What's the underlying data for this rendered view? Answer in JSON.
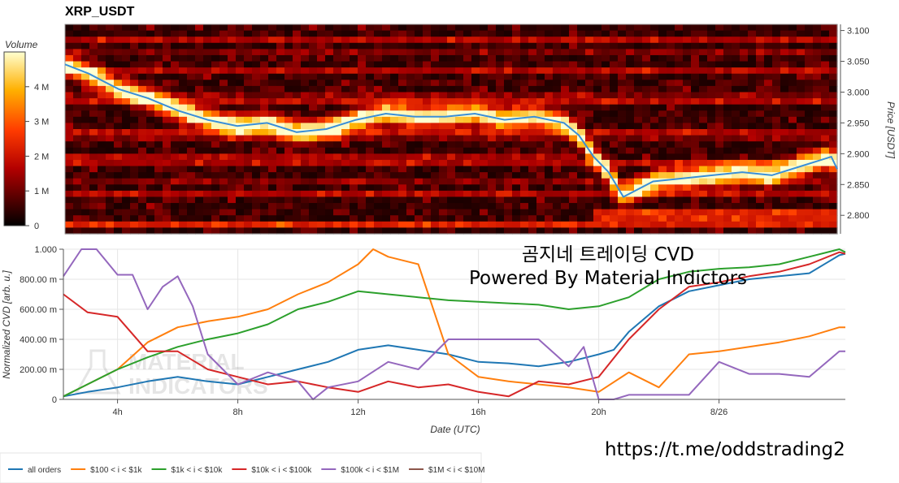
{
  "header": {
    "title": "XRP_USDT"
  },
  "watermark": {
    "text": "MATERIAL INDICATORS"
  },
  "overlay": {
    "line1": "곰지네 트레이딩 CVD",
    "line2": "Powered By Material Indictors",
    "link": "https://t.me/oddstrading2"
  },
  "colors": {
    "all_orders": "#1f77b4",
    "r100_1k": "#ff7f0e",
    "r1k_10k": "#2ca02c",
    "r10k_100k": "#d62728",
    "r100k_1m": "#9467bd",
    "r1m_10m": "#8c564b",
    "price_line": "#3a8fd8"
  },
  "chart_data": [
    {
      "type": "heatmap",
      "title": "XRP_USDT",
      "colorbar_label": "Volume",
      "colorbar_ticks": [
        "0",
        "1 M",
        "2 M",
        "3 M",
        "4 M"
      ],
      "colorbar_range": [
        0,
        5000000
      ],
      "ylabel": "Price [USDT]",
      "y_ticks": [
        "2.800",
        "2.850",
        "2.900",
        "2.950",
        "3.000",
        "3.050",
        "3.100"
      ],
      "ylim": [
        2.77,
        3.11
      ],
      "price_series": {
        "x_hours": [
          2.2,
          3,
          4,
          5,
          6,
          7,
          8,
          9,
          10,
          11,
          12,
          13,
          14,
          15,
          16,
          17,
          18,
          19,
          19.5,
          20,
          20.5,
          21,
          22,
          23,
          24,
          25,
          26,
          27,
          28,
          28.2
        ],
        "price": [
          3.045,
          3.03,
          3.005,
          2.99,
          2.97,
          2.955,
          2.945,
          2.95,
          2.935,
          2.94,
          2.955,
          2.965,
          2.96,
          2.96,
          2.965,
          2.955,
          2.96,
          2.95,
          2.93,
          2.895,
          2.87,
          2.83,
          2.855,
          2.86,
          2.865,
          2.87,
          2.865,
          2.88,
          2.895,
          2.875
        ]
      }
    },
    {
      "type": "line",
      "xlabel": "Date (UTC)",
      "ylabel": "Normalized CVD [arb. u.]",
      "x_ticks": [
        "4h",
        "8h",
        "12h",
        "16h",
        "20h",
        "8/26"
      ],
      "x_tick_hours": [
        4,
        8,
        12,
        16,
        20,
        24
      ],
      "xlim_hours": [
        2.2,
        28.2
      ],
      "y_ticks": [
        "0",
        "200.00 m",
        "400.00 m",
        "600.00 m",
        "800.00 m",
        "1.000"
      ],
      "ylim": [
        0,
        1
      ],
      "legend_position": "bottom-left",
      "series": [
        {
          "name": "all orders",
          "color_key": "all_orders",
          "x": [
            2.2,
            3,
            4,
            5,
            6,
            7,
            8,
            9,
            10,
            11,
            12,
            13,
            14,
            15,
            16,
            17,
            18,
            19,
            20,
            20.5,
            21,
            22,
            23,
            24,
            25,
            26,
            27,
            28,
            28.2
          ],
          "y": [
            0.02,
            0.05,
            0.08,
            0.12,
            0.15,
            0.12,
            0.1,
            0.15,
            0.2,
            0.25,
            0.33,
            0.36,
            0.33,
            0.3,
            0.25,
            0.24,
            0.22,
            0.25,
            0.3,
            0.33,
            0.45,
            0.62,
            0.72,
            0.76,
            0.8,
            0.82,
            0.84,
            0.96,
            0.97
          ]
        },
        {
          "name": "$100 < i < $1k",
          "color_key": "r100_1k",
          "x": [
            2.2,
            3,
            4,
            5,
            6,
            7,
            8,
            9,
            10,
            11,
            12,
            12.5,
            13,
            14,
            15,
            16,
            17,
            18,
            19,
            20,
            21,
            22,
            23,
            24,
            25,
            26,
            27,
            28,
            28.2
          ],
          "y": [
            0.02,
            0.1,
            0.2,
            0.38,
            0.48,
            0.52,
            0.55,
            0.6,
            0.7,
            0.78,
            0.9,
            1.0,
            0.95,
            0.9,
            0.3,
            0.15,
            0.12,
            0.1,
            0.08,
            0.05,
            0.18,
            0.08,
            0.3,
            0.32,
            0.35,
            0.38,
            0.42,
            0.48,
            0.48
          ]
        },
        {
          "name": "$1k < i < $10k",
          "color_key": "r1k_10k",
          "x": [
            2.2,
            3,
            4,
            5,
            6,
            7,
            8,
            9,
            10,
            11,
            12,
            13,
            14,
            15,
            16,
            17,
            18,
            19,
            20,
            21,
            22,
            23,
            24,
            25,
            26,
            27,
            28,
            28.2
          ],
          "y": [
            0.02,
            0.1,
            0.2,
            0.28,
            0.35,
            0.4,
            0.44,
            0.5,
            0.6,
            0.65,
            0.72,
            0.7,
            0.68,
            0.66,
            0.65,
            0.64,
            0.63,
            0.6,
            0.62,
            0.68,
            0.8,
            0.85,
            0.87,
            0.88,
            0.9,
            0.95,
            1.0,
            0.98
          ]
        },
        {
          "name": "$10k < i < $100k",
          "color_key": "r10k_100k",
          "x": [
            2.2,
            3,
            4,
            5,
            6,
            7,
            8,
            9,
            10,
            11,
            12,
            13,
            14,
            15,
            16,
            17,
            18,
            19,
            20,
            21,
            22,
            23,
            24,
            25,
            26,
            27,
            28,
            28.2
          ],
          "y": [
            0.7,
            0.58,
            0.55,
            0.32,
            0.32,
            0.2,
            0.15,
            0.1,
            0.12,
            0.08,
            0.05,
            0.12,
            0.08,
            0.1,
            0.05,
            0.02,
            0.12,
            0.1,
            0.15,
            0.4,
            0.6,
            0.75,
            0.78,
            0.82,
            0.85,
            0.9,
            0.98,
            0.97
          ]
        },
        {
          "name": "$100k < i < $1M",
          "color_key": "r100k_1m",
          "x": [
            2.2,
            2.8,
            3.3,
            4,
            4.5,
            5,
            5.5,
            6,
            6.5,
            7,
            8,
            9,
            10,
            10.5,
            11,
            12,
            13,
            14,
            15,
            16,
            17,
            18,
            19,
            19.5,
            20,
            20.5,
            21,
            22,
            23,
            24,
            25,
            26,
            27,
            28,
            28.2
          ],
          "y": [
            0.82,
            1.0,
            1.0,
            0.83,
            0.83,
            0.6,
            0.75,
            0.82,
            0.62,
            0.3,
            0.1,
            0.18,
            0.12,
            0.0,
            0.08,
            0.12,
            0.25,
            0.2,
            0.4,
            0.4,
            0.4,
            0.4,
            0.22,
            0.35,
            0.0,
            0.0,
            0.03,
            0.03,
            0.03,
            0.25,
            0.17,
            0.17,
            0.15,
            0.32,
            0.32
          ]
        },
        {
          "name": "$1M < i < $10M",
          "color_key": "r1m_10m",
          "x": [],
          "y": []
        }
      ]
    }
  ]
}
